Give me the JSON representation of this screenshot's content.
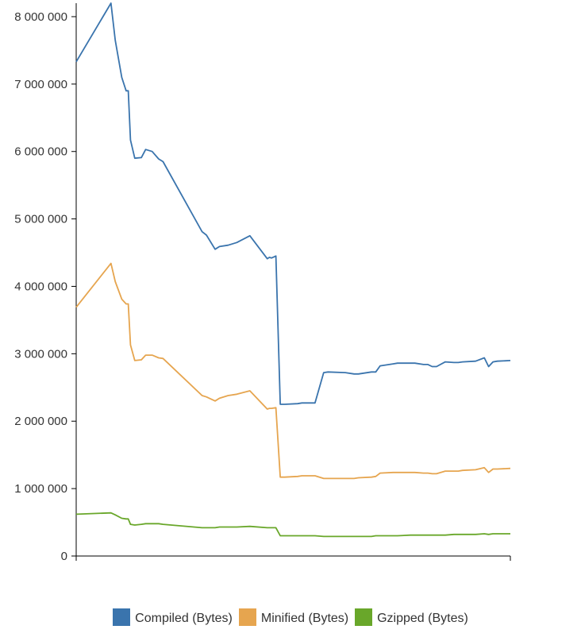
{
  "chart_data": {
    "type": "line",
    "title": "",
    "xlabel": "",
    "ylabel": "",
    "ylim": [
      0,
      8200000
    ],
    "xlim": [
      0,
      100
    ],
    "grid": false,
    "legend_position": "bottom",
    "y_ticks": [
      0,
      1000000,
      2000000,
      3000000,
      4000000,
      5000000,
      6000000,
      7000000,
      8000000
    ],
    "y_tick_labels": [
      "0",
      "1 000 000",
      "2 000 000",
      "3 000 000",
      "4 000 000",
      "5 000 000",
      "6 000 000",
      "7 000 000",
      "8 000 000"
    ],
    "x": [
      0,
      8,
      9,
      10.5,
      11.5,
      12,
      12.5,
      13.5,
      15,
      16,
      17.5,
      19,
      20,
      29,
      30,
      32,
      33,
      35,
      37,
      40,
      44,
      44.5,
      45,
      46,
      47,
      48,
      51,
      52,
      55,
      57,
      58,
      62,
      64,
      65,
      68,
      69,
      70,
      73,
      74,
      77,
      78,
      80,
      81,
      82,
      83,
      85,
      87,
      88,
      89,
      92,
      94,
      95,
      96,
      97,
      100
    ],
    "series": [
      {
        "name": "Compiled (Bytes)",
        "color": "#3a74ad",
        "values": [
          7330000,
          8200000,
          7650000,
          7100000,
          6900000,
          6900000,
          6170000,
          5900000,
          5910000,
          6030000,
          6000000,
          5890000,
          5850000,
          4810000,
          4760000,
          4550000,
          4590000,
          4610000,
          4650000,
          4750000,
          4410000,
          4430000,
          4420000,
          4450000,
          2250000,
          2250000,
          2260000,
          2270000,
          2270000,
          2720000,
          2730000,
          2720000,
          2700000,
          2700000,
          2730000,
          2730000,
          2820000,
          2850000,
          2860000,
          2860000,
          2860000,
          2840000,
          2840000,
          2810000,
          2810000,
          2880000,
          2870000,
          2870000,
          2880000,
          2890000,
          2940000,
          2810000,
          2880000,
          2890000,
          2900000
        ]
      },
      {
        "name": "Minified (Bytes)",
        "color": "#e6a54f",
        "values": [
          3690000,
          4340000,
          4070000,
          3810000,
          3740000,
          3740000,
          3130000,
          2900000,
          2910000,
          2980000,
          2980000,
          2940000,
          2930000,
          2380000,
          2360000,
          2300000,
          2340000,
          2380000,
          2400000,
          2450000,
          2180000,
          2190000,
          2190000,
          2200000,
          1170000,
          1170000,
          1180000,
          1190000,
          1190000,
          1150000,
          1150000,
          1150000,
          1150000,
          1160000,
          1170000,
          1180000,
          1230000,
          1240000,
          1240000,
          1240000,
          1240000,
          1230000,
          1230000,
          1220000,
          1220000,
          1260000,
          1260000,
          1260000,
          1270000,
          1280000,
          1310000,
          1240000,
          1290000,
          1290000,
          1300000
        ]
      },
      {
        "name": "Gzipped (Bytes)",
        "color": "#69a72a",
        "values": [
          620000,
          640000,
          610000,
          560000,
          550000,
          550000,
          470000,
          460000,
          470000,
          480000,
          480000,
          480000,
          470000,
          420000,
          420000,
          420000,
          430000,
          430000,
          430000,
          440000,
          420000,
          420000,
          420000,
          420000,
          300000,
          300000,
          300000,
          300000,
          300000,
          290000,
          290000,
          290000,
          290000,
          290000,
          290000,
          300000,
          300000,
          300000,
          300000,
          310000,
          310000,
          310000,
          310000,
          310000,
          310000,
          310000,
          320000,
          320000,
          320000,
          320000,
          330000,
          320000,
          330000,
          330000,
          330000
        ]
      }
    ]
  }
}
